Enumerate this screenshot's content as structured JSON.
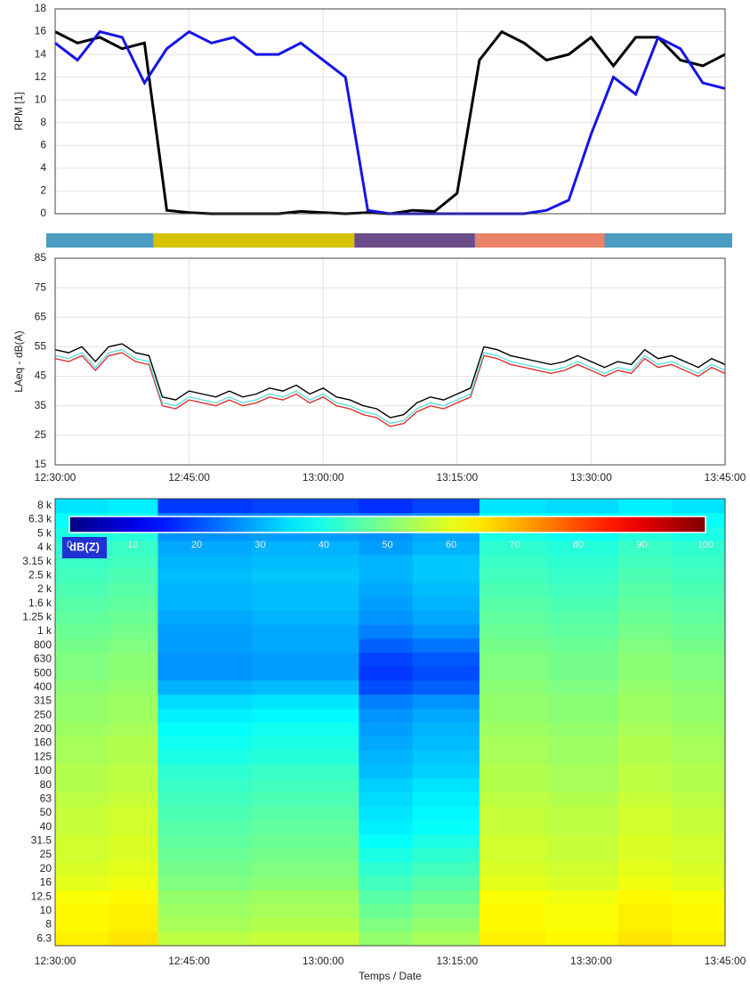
{
  "chart_data": [
    {
      "type": "line",
      "ylabel": "RPM [1]",
      "x": [
        "12:30:00",
        "12:32:30",
        "12:35:00",
        "12:37:30",
        "12:40:00",
        "12:42:30",
        "12:45:00",
        "12:47:30",
        "12:50:00",
        "12:52:30",
        "12:55:00",
        "12:57:30",
        "13:00:00",
        "13:02:30",
        "13:05:00",
        "13:07:30",
        "13:10:00",
        "13:12:30",
        "13:15:00",
        "13:17:30",
        "13:20:00",
        "13:22:30",
        "13:25:00",
        "13:27:30",
        "13:30:00",
        "13:32:30",
        "13:35:00",
        "13:37:30",
        "13:40:00",
        "13:42:30",
        "13:45:00"
      ],
      "series": [
        {
          "color": "#000000",
          "values": [
            16,
            15,
            15.5,
            14.5,
            15,
            0.3,
            0.1,
            0,
            0,
            0,
            0,
            0.2,
            0.1,
            0,
            0.1,
            0,
            0.3,
            0.2,
            1.8,
            13.5,
            16,
            15,
            13.5,
            14,
            15.5,
            13,
            15.5,
            15.5,
            13.5,
            13,
            14
          ]
        },
        {
          "color": "#1414e6",
          "values": [
            15,
            13.5,
            16,
            15.5,
            11.5,
            14.5,
            16,
            15,
            15.5,
            14,
            14,
            15,
            13.5,
            12,
            0.3,
            0,
            0,
            0,
            0,
            0,
            0,
            0,
            0.3,
            1.2,
            7,
            12,
            10.5,
            15.5,
            14.5,
            11.5,
            11
          ]
        }
      ],
      "xlim": [
        "12:30:00",
        "13:45:00"
      ],
      "xticks": [
        "12:30:00",
        "12:45:00",
        "13:00:00",
        "13:15:00",
        "13:30:00",
        "13:45:00"
      ],
      "show_xtick_labels": false,
      "ylim": [
        0,
        18
      ],
      "yticks": [
        0,
        2,
        4,
        6,
        8,
        10,
        12,
        14,
        16,
        18
      ],
      "grid": true
    },
    {
      "type": "timeline",
      "xlim": [
        "12:30:00",
        "13:45:00"
      ],
      "segments": [
        {
          "start": "12:30:00",
          "end": "12:41:00",
          "color": "#4a9cc0"
        },
        {
          "start": "12:41:00",
          "end": "13:03:30",
          "color": "#d6c200"
        },
        {
          "start": "13:03:30",
          "end": "13:17:00",
          "color": "#6a4c8a"
        },
        {
          "start": "13:17:00",
          "end": "13:31:30",
          "color": "#e98267"
        },
        {
          "start": "13:31:30",
          "end": "13:45:00",
          "color": "#4a9cc0"
        }
      ]
    },
    {
      "type": "line",
      "ylabel": "LAeq - dB(A)",
      "x": [
        "12:30:00",
        "12:31:30",
        "12:33:00",
        "12:34:30",
        "12:36:00",
        "12:37:30",
        "12:39:00",
        "12:40:30",
        "12:42:00",
        "12:43:30",
        "12:45:00",
        "12:46:30",
        "12:48:00",
        "12:49:30",
        "12:51:00",
        "12:52:30",
        "12:54:00",
        "12:55:30",
        "12:57:00",
        "12:58:30",
        "13:00:00",
        "13:01:30",
        "13:03:00",
        "13:04:30",
        "13:06:00",
        "13:07:30",
        "13:09:00",
        "13:10:30",
        "13:12:00",
        "13:13:30",
        "13:15:00",
        "13:16:30",
        "13:18:00",
        "13:19:30",
        "13:21:00",
        "13:22:30",
        "13:24:00",
        "13:25:30",
        "13:27:00",
        "13:28:30",
        "13:30:00",
        "13:31:30",
        "13:33:00",
        "13:34:30",
        "13:36:00",
        "13:37:30",
        "13:39:00",
        "13:40:30",
        "13:42:00",
        "13:43:30",
        "13:45:00"
      ],
      "series": [
        {
          "color": "#e03030",
          "values": [
            51,
            50,
            52,
            47,
            52,
            53,
            50,
            49,
            35,
            34,
            37,
            36,
            35,
            37,
            35,
            36,
            38,
            37,
            39,
            36,
            38,
            35,
            34,
            32,
            31,
            28,
            29,
            33,
            35,
            34,
            36,
            38,
            52,
            51,
            49,
            48,
            47,
            46,
            47,
            49,
            47,
            45,
            47,
            46,
            51,
            48,
            49,
            47,
            45,
            48,
            46
          ]
        },
        {
          "color": "#5fe0e0",
          "values": [
            52,
            51,
            53,
            48,
            53,
            54,
            51,
            50,
            36,
            35,
            38,
            37,
            36,
            38,
            36,
            37,
            39,
            38,
            40,
            37,
            39,
            36,
            35,
            33,
            32,
            29,
            30,
            34,
            36,
            35,
            37,
            39,
            53,
            52,
            50,
            49,
            48,
            47,
            48,
            50,
            48,
            46,
            48,
            47,
            52,
            49,
            50,
            48,
            46,
            49,
            47
          ]
        },
        {
          "color": "#000000",
          "values": [
            54,
            53,
            55,
            50,
            55,
            56,
            53,
            52,
            38,
            37,
            40,
            39,
            38,
            40,
            38,
            39,
            41,
            40,
            42,
            39,
            41,
            38,
            37,
            35,
            34,
            31,
            32,
            36,
            38,
            37,
            39,
            41,
            55,
            54,
            52,
            51,
            50,
            49,
            50,
            52,
            50,
            48,
            50,
            49,
            54,
            51,
            52,
            50,
            48,
            51,
            49
          ]
        }
      ],
      "xlim": [
        "12:30:00",
        "13:45:00"
      ],
      "xticks": [
        "12:30:00",
        "12:45:00",
        "13:00:00",
        "13:15:00",
        "13:30:00",
        "13:45:00"
      ],
      "show_xtick_labels": true,
      "ylim": [
        15,
        85
      ],
      "yticks": [
        15,
        25,
        35,
        45,
        55,
        65,
        75,
        85
      ],
      "grid": true
    },
    {
      "type": "heatmap",
      "xlabel": "Temps / Date",
      "colormap": "jet",
      "categories": [
        "6.3",
        "8",
        "10",
        "12.5",
        "16",
        "20",
        "25",
        "31.5",
        "40",
        "50",
        "63",
        "80",
        "100",
        "125",
        "160",
        "200",
        "250",
        "315",
        "400",
        "500",
        "630",
        "800",
        "1 k",
        "1.25 k",
        "1.6 k",
        "2 k",
        "2.5 k",
        "3.15 k",
        "4 k",
        "5 k",
        "6.3 k",
        "8 k"
      ],
      "x_edges": [
        "12:30:00",
        "12:36:00",
        "12:41:30",
        "12:52:00",
        "13:04:00",
        "13:10:00",
        "13:17:30",
        "13:25:00",
        "13:33:00",
        "13:39:00",
        "13:45:00"
      ],
      "z": [
        [
          64,
          65,
          56,
          57,
          52,
          54,
          64,
          63,
          65,
          64
        ],
        [
          63,
          64,
          54,
          55,
          50,
          52,
          63,
          62,
          64,
          63
        ],
        [
          63,
          64,
          53,
          54,
          48,
          50,
          63,
          62,
          64,
          63
        ],
        [
          62,
          63,
          52,
          53,
          46,
          48,
          62,
          61,
          63,
          62
        ],
        [
          60,
          61,
          50,
          51,
          44,
          46,
          60,
          59,
          61,
          60
        ],
        [
          59,
          60,
          49,
          50,
          42,
          44,
          59,
          58,
          60,
          59
        ],
        [
          58,
          59,
          48,
          49,
          40,
          42,
          58,
          57,
          59,
          58
        ],
        [
          58,
          59,
          47,
          48,
          38,
          40,
          58,
          57,
          59,
          58
        ],
        [
          57,
          58,
          46,
          47,
          36,
          38,
          57,
          56,
          58,
          57
        ],
        [
          57,
          58,
          45,
          46,
          35,
          37,
          57,
          56,
          58,
          57
        ],
        [
          56,
          57,
          44,
          45,
          34,
          36,
          56,
          55,
          57,
          56
        ],
        [
          55,
          56,
          43,
          44,
          33,
          35,
          55,
          54,
          56,
          55
        ],
        [
          55,
          56,
          42,
          43,
          31,
          33,
          55,
          54,
          56,
          55
        ],
        [
          54,
          55,
          40,
          41,
          30,
          32,
          54,
          53,
          55,
          54
        ],
        [
          54,
          55,
          39,
          40,
          29,
          31,
          54,
          53,
          55,
          54
        ],
        [
          53,
          54,
          38,
          39,
          28,
          30,
          53,
          52,
          54,
          53
        ],
        [
          52,
          53,
          36,
          37,
          27,
          29,
          52,
          51,
          53,
          52
        ],
        [
          52,
          53,
          34,
          35,
          25,
          27,
          52,
          51,
          53,
          52
        ],
        [
          51,
          52,
          30,
          31,
          20,
          22,
          51,
          50,
          52,
          51
        ],
        [
          50,
          51,
          27,
          28,
          18,
          20,
          50,
          49,
          51,
          50
        ],
        [
          50,
          51,
          27,
          28,
          19,
          21,
          50,
          49,
          51,
          50
        ],
        [
          49,
          50,
          28,
          29,
          22,
          24,
          49,
          48,
          50,
          49
        ],
        [
          48,
          49,
          28,
          29,
          25,
          27,
          48,
          47,
          49,
          48
        ],
        [
          47,
          48,
          29,
          30,
          27,
          29,
          47,
          46,
          48,
          47
        ],
        [
          46,
          47,
          30,
          31,
          28,
          30,
          46,
          45,
          47,
          46
        ],
        [
          45,
          46,
          30,
          31,
          29,
          31,
          45,
          44,
          46,
          45
        ],
        [
          44,
          45,
          31,
          32,
          30,
          32,
          44,
          43,
          45,
          44
        ],
        [
          43,
          44,
          30,
          31,
          30,
          32,
          43,
          42,
          44,
          43
        ],
        [
          42,
          43,
          29,
          30,
          28,
          30,
          42,
          41,
          43,
          42
        ],
        [
          40,
          41,
          27,
          28,
          27,
          29,
          40,
          39,
          41,
          40
        ],
        [
          38,
          39,
          25,
          26,
          25,
          27,
          38,
          37,
          39,
          38
        ],
        [
          35,
          36,
          18,
          19,
          17,
          19,
          35,
          34,
          36,
          35
        ]
      ],
      "xlim": [
        "12:30:00",
        "13:45:00"
      ],
      "xticks": [
        "12:30:00",
        "12:45:00",
        "13:00:00",
        "13:15:00",
        "13:30:00",
        "13:45:00"
      ],
      "colorbar": {
        "label": "dB(Z)",
        "lim": [
          0,
          100
        ],
        "ticks": [
          0,
          10,
          20,
          30,
          40,
          50,
          60,
          70,
          80,
          90,
          100
        ]
      }
    }
  ]
}
